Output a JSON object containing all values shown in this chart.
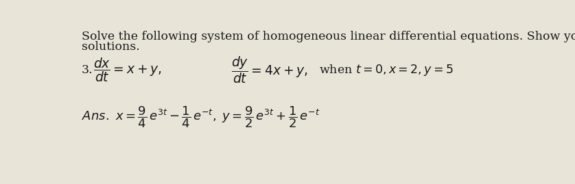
{
  "background_color": "#e8e4d8",
  "text_color": "#1a1a1a",
  "header_line1": "Solve the following system of homogeneous linear differential equations. Show your detailed",
  "header_line2": "solutions.",
  "number": "3.",
  "font_size_body": 12.5,
  "font_size_math": 13.5,
  "font_size_ans": 13.0
}
